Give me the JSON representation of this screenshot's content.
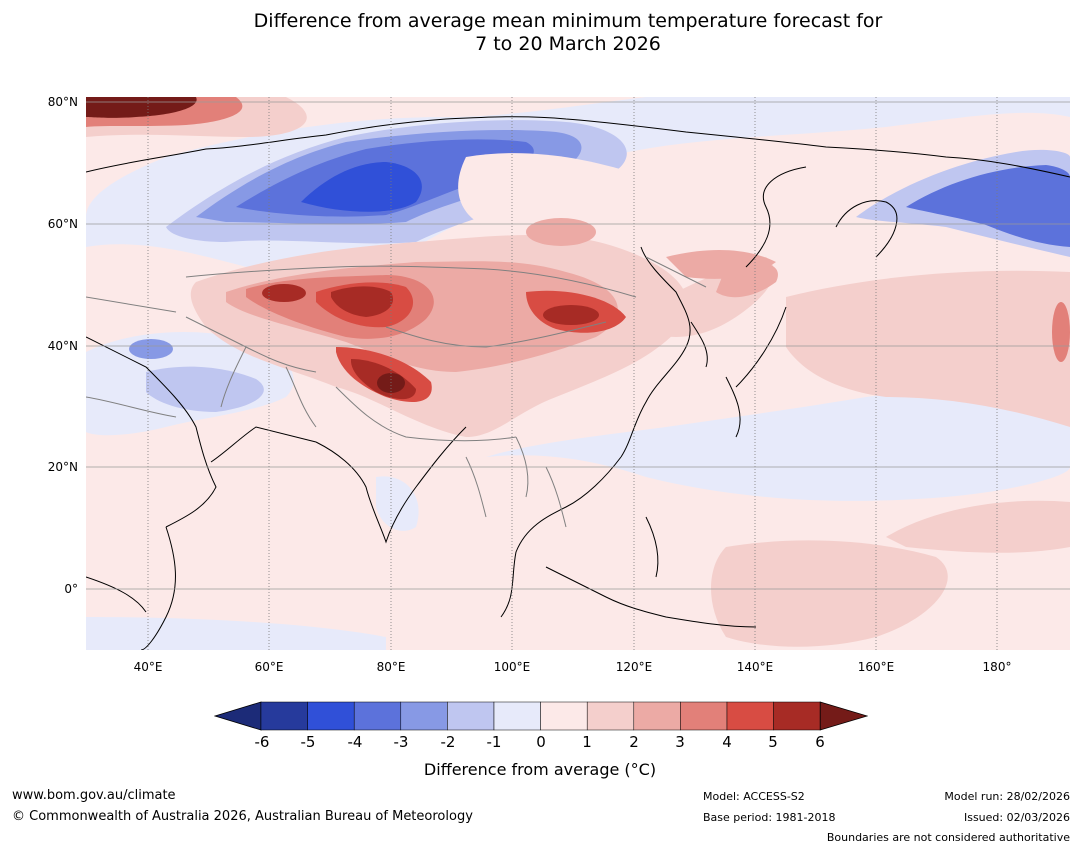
{
  "title": {
    "line1": "Difference from average mean minimum temperature forecast for",
    "line2": "7 to 20 March 2026"
  },
  "map": {
    "lat_labels": [
      "80°N",
      "60°N",
      "40°N",
      "20°N",
      "0°"
    ],
    "lon_labels": [
      "40°E",
      "60°E",
      "80°E",
      "100°E",
      "120°E",
      "140°E",
      "160°E",
      "180°"
    ],
    "extent": {
      "lon_min": 30,
      "lon_max": 192,
      "lat_min": -10,
      "lat_max": 80
    }
  },
  "colorbar": {
    "ticks": [
      "-6",
      "-5",
      "-4",
      "-3",
      "-2",
      "-1",
      "0",
      "1",
      "2",
      "3",
      "4",
      "5",
      "6"
    ],
    "colors": [
      "#263a9c",
      "#3050d8",
      "#5c72db",
      "#8799e5",
      "#bfc6f0",
      "#e7eafa",
      "#fce9e8",
      "#f4cfcc",
      "#ecaaa5",
      "#e28079",
      "#d84c43",
      "#a72b25"
    ],
    "under_color": "#1c2b78",
    "over_color": "#741b18",
    "label": "Difference from average (°C)"
  },
  "footer": {
    "website": "www.bom.gov.au/climate",
    "copyright": "© Commonwealth of Australia 2026, Australian Bureau of Meteorology",
    "model": "Model: ACCESS-S2",
    "base_period": "Base period: 1981-2018",
    "model_run": "Model run: 28/02/2026",
    "issued": "Issued: 02/03/2026",
    "disclaimer": "Boundaries are not considered authoritative"
  }
}
